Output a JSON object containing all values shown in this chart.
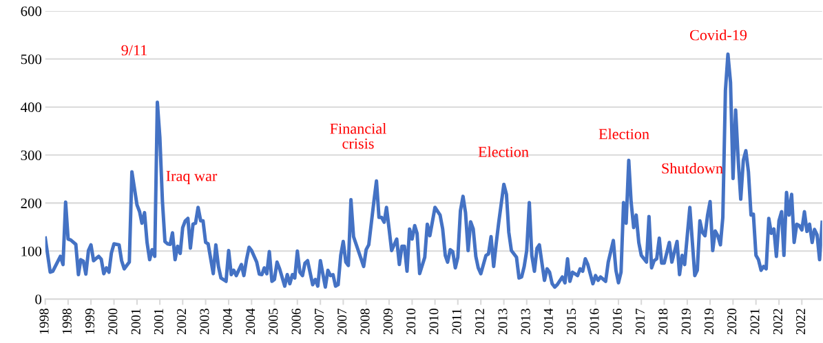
{
  "chart_data": {
    "type": "line",
    "x": [
      "1998-01",
      "1998-03",
      "1998-04",
      "1998-07",
      "1998-08",
      "1998-09",
      "1998-10",
      "1998-11",
      "1999-01",
      "1999-02",
      "1999-03",
      "1999-04",
      "1999-05",
      "1999-06",
      "1999-07",
      "1999-08",
      "1999-10",
      "1999-11",
      "1999-12",
      "2000-01",
      "2000-02",
      "2000-03",
      "2000-04",
      "2000-06",
      "2000-07",
      "2000-08",
      "2000-10",
      "2000-11",
      "2001-01",
      "2001-02",
      "2001-03",
      "2001-04",
      "2001-05",
      "2001-06",
      "2001-07",
      "2001-08",
      "2001-09",
      "2001-10",
      "2001-11",
      "2001-12",
      "2002-01",
      "2002-02",
      "2002-03",
      "2002-04",
      "2002-05",
      "2002-06",
      "2002-07",
      "2002-08",
      "2002-09",
      "2002-10",
      "2002-11",
      "2002-12",
      "2003-01",
      "2003-02",
      "2003-03",
      "2003-04",
      "2003-05",
      "2003-07",
      "2003-08",
      "2003-09",
      "2003-10",
      "2003-12",
      "2004-01",
      "2004-02",
      "2004-03",
      "2004-04",
      "2004-06",
      "2004-07",
      "2004-08",
      "2004-09",
      "2004-10",
      "2004-12",
      "2005-01",
      "2005-02",
      "2005-03",
      "2005-04",
      "2005-05",
      "2005-06",
      "2005-07",
      "2005-08",
      "2005-09",
      "2005-11",
      "2005-12",
      "2006-01",
      "2006-02",
      "2006-03",
      "2006-04",
      "2006-05",
      "2006-06",
      "2006-07",
      "2006-08",
      "2006-10",
      "2006-11",
      "2006-12",
      "2007-01",
      "2007-03",
      "2007-04",
      "2007-05",
      "2007-06",
      "2007-07",
      "2007-08",
      "2007-09",
      "2007-10",
      "2007-11",
      "2007-12",
      "2008-01",
      "2008-02",
      "2008-05",
      "2008-06",
      "2008-07",
      "2008-08",
      "2008-10",
      "2008-11",
      "2008-12",
      "2009-01",
      "2009-02",
      "2009-03",
      "2009-04",
      "2009-05",
      "2009-07",
      "2009-08",
      "2009-09",
      "2009-10",
      "2009-11",
      "2009-12",
      "2010-01",
      "2010-02",
      "2010-03",
      "2010-04",
      "2010-06",
      "2010-07",
      "2010-08",
      "2010-10",
      "2010-12",
      "2011-01",
      "2011-02",
      "2011-03",
      "2011-04",
      "2011-05",
      "2011-06",
      "2011-07",
      "2011-08",
      "2011-09",
      "2011-10",
      "2011-11",
      "2011-12",
      "2012-01",
      "2012-02",
      "2012-03",
      "2012-04",
      "2012-06",
      "2012-07",
      "2012-08",
      "2012-09",
      "2012-10",
      "2012-11",
      "2013-01",
      "2013-02",
      "2013-03",
      "2013-04",
      "2013-06",
      "2013-07",
      "2013-08",
      "2013-09",
      "2013-10",
      "2013-11",
      "2013-12",
      "2014-01",
      "2014-02",
      "2014-03",
      "2014-04",
      "2014-05",
      "2014-06",
      "2014-07",
      "2014-08",
      "2014-09",
      "2014-10",
      "2014-12",
      "2015-01",
      "2015-02",
      "2015-03",
      "2015-04",
      "2015-06",
      "2015-07",
      "2015-08",
      "2015-09",
      "2015-10",
      "2015-12",
      "2016-01",
      "2016-02",
      "2016-03",
      "2016-05",
      "2016-06",
      "2016-08",
      "2016-09",
      "2016-10",
      "2016-11",
      "2016-12",
      "2017-01",
      "2017-02",
      "2017-03",
      "2017-04",
      "2017-05",
      "2017-06",
      "2017-07",
      "2017-09",
      "2017-10",
      "2017-11",
      "2017-12",
      "2018-01",
      "2018-02",
      "2018-03",
      "2018-04",
      "2018-06",
      "2018-07",
      "2018-09",
      "2018-10",
      "2018-11",
      "2018-12",
      "2019-02",
      "2019-04",
      "2019-05",
      "2019-06",
      "2019-07",
      "2019-08",
      "2019-09",
      "2019-10",
      "2019-11",
      "2019-12",
      "2020-01",
      "2020-02",
      "2020-03",
      "2020-04",
      "2020-05",
      "2020-06",
      "2020-07",
      "2020-08",
      "2020-09",
      "2020-10",
      "2020-11",
      "2020-12",
      "2021-01",
      "2021-02",
      "2021-03",
      "2021-04",
      "2021-05",
      "2021-06",
      "2021-07",
      "2021-08",
      "2021-09",
      "2021-10",
      "2021-11",
      "2021-12",
      "2022-01",
      "2022-02",
      "2022-03",
      "2022-04",
      "2022-05",
      "2022-06",
      "2022-07",
      "2022-08",
      "2022-09",
      "2022-10",
      "2022-11",
      "2022-12",
      "2023-01",
      "2023-02",
      "2023-03",
      "2023-04",
      "2023-05",
      "2023-06"
    ],
    "series": [
      {
        "color": "#4472c4",
        "values": [
          127,
          56,
          58,
          89,
          72,
          202,
          125,
          123,
          114,
          51,
          82,
          79,
          52,
          101,
          113,
          80,
          89,
          83,
          53,
          65,
          56,
          96,
          115,
          113,
          80,
          63,
          77,
          265,
          196,
          182,
          158,
          180,
          118,
          82,
          103,
          89,
          410,
          337,
          203,
          120,
          115,
          114,
          138,
          82,
          110,
          95,
          149,
          163,
          168,
          106,
          156,
          158,
          191,
          163,
          163,
          118,
          115,
          53,
          113,
          68,
          44,
          37,
          101,
          51,
          60,
          49,
          72,
          49,
          82,
          108,
          101,
          77,
          52,
          51,
          65,
          53,
          99,
          37,
          41,
          77,
          63,
          27,
          51,
          32,
          51,
          44,
          100,
          56,
          49,
          75,
          80,
          30,
          41,
          27,
          80,
          25,
          60,
          49,
          51,
          27,
          30,
          91,
          120,
          77,
          70,
          207,
          130,
          84,
          68,
          103,
          113,
          203,
          246,
          170,
          170,
          160,
          191,
          146,
          101,
          125,
          72,
          110,
          110,
          58,
          146,
          125,
          153,
          137,
          53,
          87,
          156,
          132,
          191,
          175,
          146,
          91,
          77,
          103,
          99,
          65,
          87,
          184,
          214,
          180,
          101,
          161,
          146,
          89,
          65,
          53,
          91,
          94,
          130,
          68,
          115,
          160,
          239,
          218,
          139,
          101,
          87,
          44,
          46,
          68,
          101,
          201,
          91,
          58,
          106,
          113,
          75,
          39,
          63,
          56,
          32,
          25,
          30,
          46,
          34,
          84,
          37,
          56,
          49,
          63,
          58,
          84,
          72,
          32,
          49,
          39,
          46,
          37,
          77,
          122,
          60,
          34,
          56,
          201,
          158,
          289,
          203,
          149,
          175,
          118,
          91,
          77,
          172,
          65,
          80,
          84,
          127,
          75,
          75,
          118,
          77,
          120,
          51,
          91,
          72,
          191,
          49,
          60,
          163,
          139,
          132,
          175,
          203,
          101,
          142,
          132,
          113,
          170,
          434,
          510,
          451,
          251,
          394,
          289,
          208,
          289,
          309,
          265,
          175,
          177,
          91,
          82,
          60,
          68,
          63,
          168,
          137,
          146,
          89,
          163,
          182,
          91,
          222,
          175,
          218,
          118,
          156,
          153,
          144,
          182,
          141,
          156,
          118,
          145,
          134,
          82,
          160
        ]
      }
    ],
    "xlim": [
      "1998-01",
      "2023-06"
    ],
    "xticks": [
      {
        "value": "1998-01",
        "label": "1998"
      },
      {
        "value": "1998-10",
        "label": "1998"
      },
      {
        "value": "1999-07",
        "label": "1999"
      },
      {
        "value": "2000-04",
        "label": "2000"
      },
      {
        "value": "2001-01",
        "label": "2001"
      },
      {
        "value": "2001-10",
        "label": "2001"
      },
      {
        "value": "2002-07",
        "label": "2002"
      },
      {
        "value": "2003-04",
        "label": "2003"
      },
      {
        "value": "2004-01",
        "label": "2004"
      },
      {
        "value": "2004-10",
        "label": "2004"
      },
      {
        "value": "2005-07",
        "label": "2005"
      },
      {
        "value": "2006-04",
        "label": "2006"
      },
      {
        "value": "2007-01",
        "label": "2007"
      },
      {
        "value": "2007-10",
        "label": "2007"
      },
      {
        "value": "2008-07",
        "label": "2008"
      },
      {
        "value": "2009-04",
        "label": "2009"
      },
      {
        "value": "2010-01",
        "label": "2010"
      },
      {
        "value": "2010-10",
        "label": "2010"
      },
      {
        "value": "2011-07",
        "label": "2011"
      },
      {
        "value": "2012-04",
        "label": "2012"
      },
      {
        "value": "2013-01",
        "label": "2013"
      },
      {
        "value": "2013-10",
        "label": "2013"
      },
      {
        "value": "2014-07",
        "label": "2014"
      },
      {
        "value": "2015-04",
        "label": "2015"
      },
      {
        "value": "2016-01",
        "label": "2016"
      },
      {
        "value": "2016-10",
        "label": "2016"
      },
      {
        "value": "2017-07",
        "label": "2017"
      },
      {
        "value": "2018-04",
        "label": "2018"
      },
      {
        "value": "2019-01",
        "label": "2019"
      },
      {
        "value": "2019-10",
        "label": "2019"
      },
      {
        "value": "2020-07",
        "label": "2020"
      },
      {
        "value": "2021-04",
        "label": "2021"
      },
      {
        "value": "2022-01",
        "label": "2022"
      },
      {
        "value": "2022-10",
        "label": "2022"
      }
    ],
    "ylim": [
      0,
      600
    ],
    "yticks": [
      0,
      100,
      200,
      300,
      400,
      500,
      600
    ],
    "grid": "y",
    "legend": false,
    "marker": "none",
    "line_style": "solid",
    "annotations": [
      "9/11",
      "Iraq war",
      "Financial\ncrisis",
      "Election",
      "Election",
      "Shutdown",
      "Covid-19"
    ]
  }
}
